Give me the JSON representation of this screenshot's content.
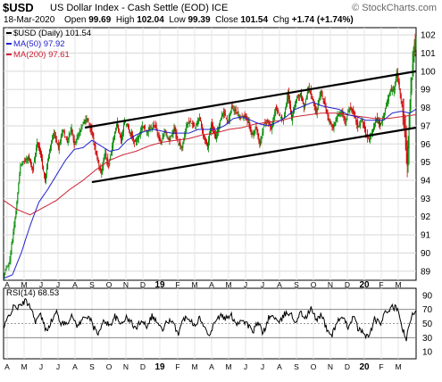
{
  "header": {
    "symbol": "$USD",
    "description": "US Dollar Index - Cash Settle (EOD)",
    "exchange": "ICE",
    "brand": "© StockCharts.com",
    "date": "18-Mar-2020",
    "ohlc": {
      "open_label": "Open",
      "open": "99.69",
      "high_label": "High",
      "high": "102.04",
      "low_label": "Low",
      "low": "99.39",
      "close_label": "Close",
      "close": "101.54",
      "chg_label": "Chg",
      "chg": "+1.74 (+1.74%)"
    }
  },
  "chart_data": [
    {
      "type": "line",
      "legend": [
        {
          "label": "$USD (Daily) 101.54",
          "color": "#000000"
        },
        {
          "label": "MA(50) 97.92",
          "color": "#2222cc"
        },
        {
          "label": "MA(200) 97.61",
          "color": "#cc2233"
        }
      ],
      "y_ticks": [
        "89",
        "90",
        "91",
        "92",
        "93",
        "94",
        "95",
        "96",
        "97",
        "98",
        "99",
        "100",
        "101",
        "102"
      ],
      "ylim": [
        88.5,
        102.4
      ],
      "x_labels": [
        "A",
        "M",
        "J",
        "J",
        "A",
        "S",
        "O",
        "N",
        "D",
        "19",
        "F",
        "M",
        "A",
        "M",
        "J",
        "J",
        "A",
        "S",
        "O",
        "N",
        "D",
        "20",
        "F",
        "M"
      ],
      "grid": true,
      "colors": {
        "up": "#008800",
        "down": "#cc0000",
        "ma50": "#2222cc",
        "ma200": "#cc2233",
        "channel": "#000000"
      },
      "price_anchors": [
        [
          0,
          88.7
        ],
        [
          7,
          89.6
        ],
        [
          14,
          92.3
        ],
        [
          19,
          94.8
        ],
        [
          23,
          95.0
        ],
        [
          28,
          95.3
        ],
        [
          33,
          94.6
        ],
        [
          38,
          96.1
        ],
        [
          42,
          95.4
        ],
        [
          47,
          94.0
        ],
        [
          52,
          95.7
        ],
        [
          57,
          96.6
        ],
        [
          62,
          95.8
        ],
        [
          67,
          96.8
        ],
        [
          72,
          96.1
        ],
        [
          77,
          96.9
        ],
        [
          80,
          95.9
        ],
        [
          85,
          96.5
        ],
        [
          90,
          97.2
        ],
        [
          95,
          97.4
        ],
        [
          100,
          96.6
        ],
        [
          105,
          95.4
        ],
        [
          110,
          94.4
        ],
        [
          115,
          95.5
        ],
        [
          119,
          94.7
        ],
        [
          124,
          96.2
        ],
        [
          128,
          97.1
        ],
        [
          133,
          96.2
        ],
        [
          137,
          97.3
        ],
        [
          142,
          96.8
        ],
        [
          148,
          96.1
        ],
        [
          152,
          96.3
        ],
        [
          157,
          97.0
        ],
        [
          162,
          96.7
        ],
        [
          168,
          96.9
        ],
        [
          172,
          97.0
        ],
        [
          178,
          96.0
        ],
        [
          182,
          96.7
        ],
        [
          188,
          96.2
        ],
        [
          193,
          96.9
        ],
        [
          197,
          96.1
        ],
        [
          202,
          95.8
        ],
        [
          207,
          97.1
        ],
        [
          212,
          97.2
        ],
        [
          217,
          96.9
        ],
        [
          222,
          97.5
        ],
        [
          226,
          96.5
        ],
        [
          231,
          95.9
        ],
        [
          235,
          97.1
        ],
        [
          240,
          96.3
        ],
        [
          245,
          97.3
        ],
        [
          249,
          97.8
        ],
        [
          254,
          97.2
        ],
        [
          258,
          98.0
        ],
        [
          263,
          97.8
        ],
        [
          268,
          97.4
        ],
        [
          272,
          97.6
        ],
        [
          277,
          97.2
        ],
        [
          281,
          96.5
        ],
        [
          286,
          96.9
        ],
        [
          290,
          95.9
        ],
        [
          295,
          97.1
        ],
        [
          299,
          97.3
        ],
        [
          303,
          96.8
        ],
        [
          308,
          98.0
        ],
        [
          312,
          97.6
        ],
        [
          317,
          97.3
        ],
        [
          322,
          98.8
        ],
        [
          326,
          97.4
        ],
        [
          331,
          98.4
        ],
        [
          336,
          98.8
        ],
        [
          340,
          98.0
        ],
        [
          345,
          99.1
        ],
        [
          349,
          98.6
        ],
        [
          354,
          97.7
        ],
        [
          359,
          98.9
        ],
        [
          364,
          98.1
        ],
        [
          368,
          97.3
        ],
        [
          373,
          96.9
        ],
        [
          378,
          97.6
        ],
        [
          383,
          97.8
        ],
        [
          387,
          97.2
        ],
        [
          392,
          98.0
        ],
        [
          397,
          97.6
        ],
        [
          401,
          96.9
        ],
        [
          406,
          97.3
        ],
        [
          410,
          96.5
        ],
        [
          414,
          96.2
        ],
        [
          418,
          96.8
        ],
        [
          422,
          97.4
        ],
        [
          426,
          97.0
        ],
        [
          430,
          97.5
        ],
        [
          434,
          98.3
        ],
        [
          438,
          99.0
        ],
        [
          442,
          98.9
        ],
        [
          445,
          99.9
        ],
        [
          448,
          99.1
        ],
        [
          451,
          98.1
        ],
        [
          453,
          97.4
        ],
        [
          455,
          96.4
        ],
        [
          457,
          94.8
        ],
        [
          459,
          96.9
        ],
        [
          461,
          98.9
        ],
        [
          463,
          100.4
        ],
        [
          465,
          101.5
        ],
        [
          467,
          101.54
        ]
      ],
      "ma50_anchors": [
        [
          0,
          88.6
        ],
        [
          10,
          88.8
        ],
        [
          20,
          90.0
        ],
        [
          30,
          91.5
        ],
        [
          40,
          92.8
        ],
        [
          50,
          93.5
        ],
        [
          60,
          94.3
        ],
        [
          70,
          95.1
        ],
        [
          80,
          95.7
        ],
        [
          90,
          95.8
        ],
        [
          100,
          96.2
        ],
        [
          110,
          95.9
        ],
        [
          120,
          95.6
        ],
        [
          130,
          95.7
        ],
        [
          140,
          96.2
        ],
        [
          150,
          96.5
        ],
        [
          160,
          96.7
        ],
        [
          170,
          96.8
        ],
        [
          180,
          96.7
        ],
        [
          190,
          96.6
        ],
        [
          200,
          96.6
        ],
        [
          210,
          96.6
        ],
        [
          220,
          96.8
        ],
        [
          230,
          96.8
        ],
        [
          240,
          96.8
        ],
        [
          250,
          97.0
        ],
        [
          260,
          97.4
        ],
        [
          270,
          97.5
        ],
        [
          280,
          97.3
        ],
        [
          290,
          97.1
        ],
        [
          300,
          97.0
        ],
        [
          310,
          97.2
        ],
        [
          320,
          97.5
        ],
        [
          330,
          97.9
        ],
        [
          340,
          98.1
        ],
        [
          350,
          98.3
        ],
        [
          360,
          98.1
        ],
        [
          370,
          98.0
        ],
        [
          380,
          97.9
        ],
        [
          390,
          97.6
        ],
        [
          400,
          97.5
        ],
        [
          410,
          97.3
        ],
        [
          420,
          97.3
        ],
        [
          430,
          97.3
        ],
        [
          440,
          97.7
        ],
        [
          450,
          97.8
        ],
        [
          460,
          97.7
        ],
        [
          467,
          97.92
        ]
      ],
      "ma200_anchors": [
        [
          0,
          92.9
        ],
        [
          15,
          92.4
        ],
        [
          30,
          92.1
        ],
        [
          45,
          92.5
        ],
        [
          60,
          92.9
        ],
        [
          75,
          93.5
        ],
        [
          90,
          94.0
        ],
        [
          105,
          94.6
        ],
        [
          120,
          95.1
        ],
        [
          135,
          95.4
        ],
        [
          150,
          95.6
        ],
        [
          165,
          95.9
        ],
        [
          180,
          96.1
        ],
        [
          195,
          96.2
        ],
        [
          210,
          96.3
        ],
        [
          225,
          96.5
        ],
        [
          240,
          96.6
        ],
        [
          255,
          96.8
        ],
        [
          270,
          96.9
        ],
        [
          285,
          97.1
        ],
        [
          300,
          97.2
        ],
        [
          315,
          97.3
        ],
        [
          330,
          97.5
        ],
        [
          345,
          97.6
        ],
        [
          360,
          97.7
        ],
        [
          375,
          97.7
        ],
        [
          390,
          97.6
        ],
        [
          405,
          97.5
        ],
        [
          420,
          97.4
        ],
        [
          435,
          97.4
        ],
        [
          450,
          97.5
        ],
        [
          467,
          97.61
        ]
      ],
      "channel_lines": [
        {
          "from": [
            92,
            96.9
          ],
          "to": [
            467,
            100.0
          ]
        },
        {
          "from": [
            100,
            93.9
          ],
          "to": [
            467,
            96.9
          ]
        }
      ]
    },
    {
      "type": "line",
      "legend": [
        {
          "label": "RSI(14) 68.53",
          "color": "#000000"
        }
      ],
      "y_ticks": [
        "10",
        "30",
        "50",
        "70",
        "90"
      ],
      "ylim": [
        0,
        100
      ],
      "reference_lines": [
        70,
        50,
        30
      ],
      "rsi_anchors": [
        [
          0,
          42
        ],
        [
          6,
          62
        ],
        [
          12,
          74
        ],
        [
          18,
          73
        ],
        [
          24,
          82
        ],
        [
          30,
          76
        ],
        [
          36,
          54
        ],
        [
          42,
          62
        ],
        [
          48,
          40
        ],
        [
          54,
          53
        ],
        [
          60,
          66
        ],
        [
          66,
          48
        ],
        [
          72,
          53
        ],
        [
          78,
          60
        ],
        [
          84,
          46
        ],
        [
          90,
          57
        ],
        [
          96,
          62
        ],
        [
          102,
          44
        ],
        [
          108,
          36
        ],
        [
          114,
          55
        ],
        [
          120,
          47
        ],
        [
          126,
          60
        ],
        [
          132,
          49
        ],
        [
          138,
          58
        ],
        [
          144,
          53
        ],
        [
          150,
          42
        ],
        [
          156,
          56
        ],
        [
          162,
          47
        ],
        [
          168,
          61
        ],
        [
          174,
          52
        ],
        [
          180,
          40
        ],
        [
          186,
          55
        ],
        [
          192,
          49
        ],
        [
          198,
          37
        ],
        [
          204,
          57
        ],
        [
          210,
          59
        ],
        [
          216,
          48
        ],
        [
          222,
          58
        ],
        [
          228,
          42
        ],
        [
          234,
          36
        ],
        [
          240,
          56
        ],
        [
          246,
          61
        ],
        [
          252,
          57
        ],
        [
          258,
          61
        ],
        [
          264,
          50
        ],
        [
          270,
          56
        ],
        [
          276,
          49
        ],
        [
          282,
          38
        ],
        [
          288,
          51
        ],
        [
          294,
          36
        ],
        [
          300,
          58
        ],
        [
          306,
          61
        ],
        [
          312,
          49
        ],
        [
          318,
          63
        ],
        [
          324,
          66
        ],
        [
          330,
          52
        ],
        [
          336,
          65
        ],
        [
          342,
          58
        ],
        [
          348,
          71
        ],
        [
          354,
          55
        ],
        [
          360,
          64
        ],
        [
          366,
          40
        ],
        [
          372,
          34
        ],
        [
          378,
          55
        ],
        [
          384,
          56
        ],
        [
          390,
          46
        ],
        [
          396,
          60
        ],
        [
          402,
          41
        ],
        [
          408,
          36
        ],
        [
          414,
          31
        ],
        [
          420,
          57
        ],
        [
          426,
          49
        ],
        [
          432,
          64
        ],
        [
          438,
          72
        ],
        [
          444,
          73
        ],
        [
          448,
          61
        ],
        [
          452,
          41
        ],
        [
          456,
          27
        ],
        [
          459,
          45
        ],
        [
          462,
          60
        ],
        [
          465,
          66
        ],
        [
          467,
          68.53
        ]
      ]
    }
  ]
}
